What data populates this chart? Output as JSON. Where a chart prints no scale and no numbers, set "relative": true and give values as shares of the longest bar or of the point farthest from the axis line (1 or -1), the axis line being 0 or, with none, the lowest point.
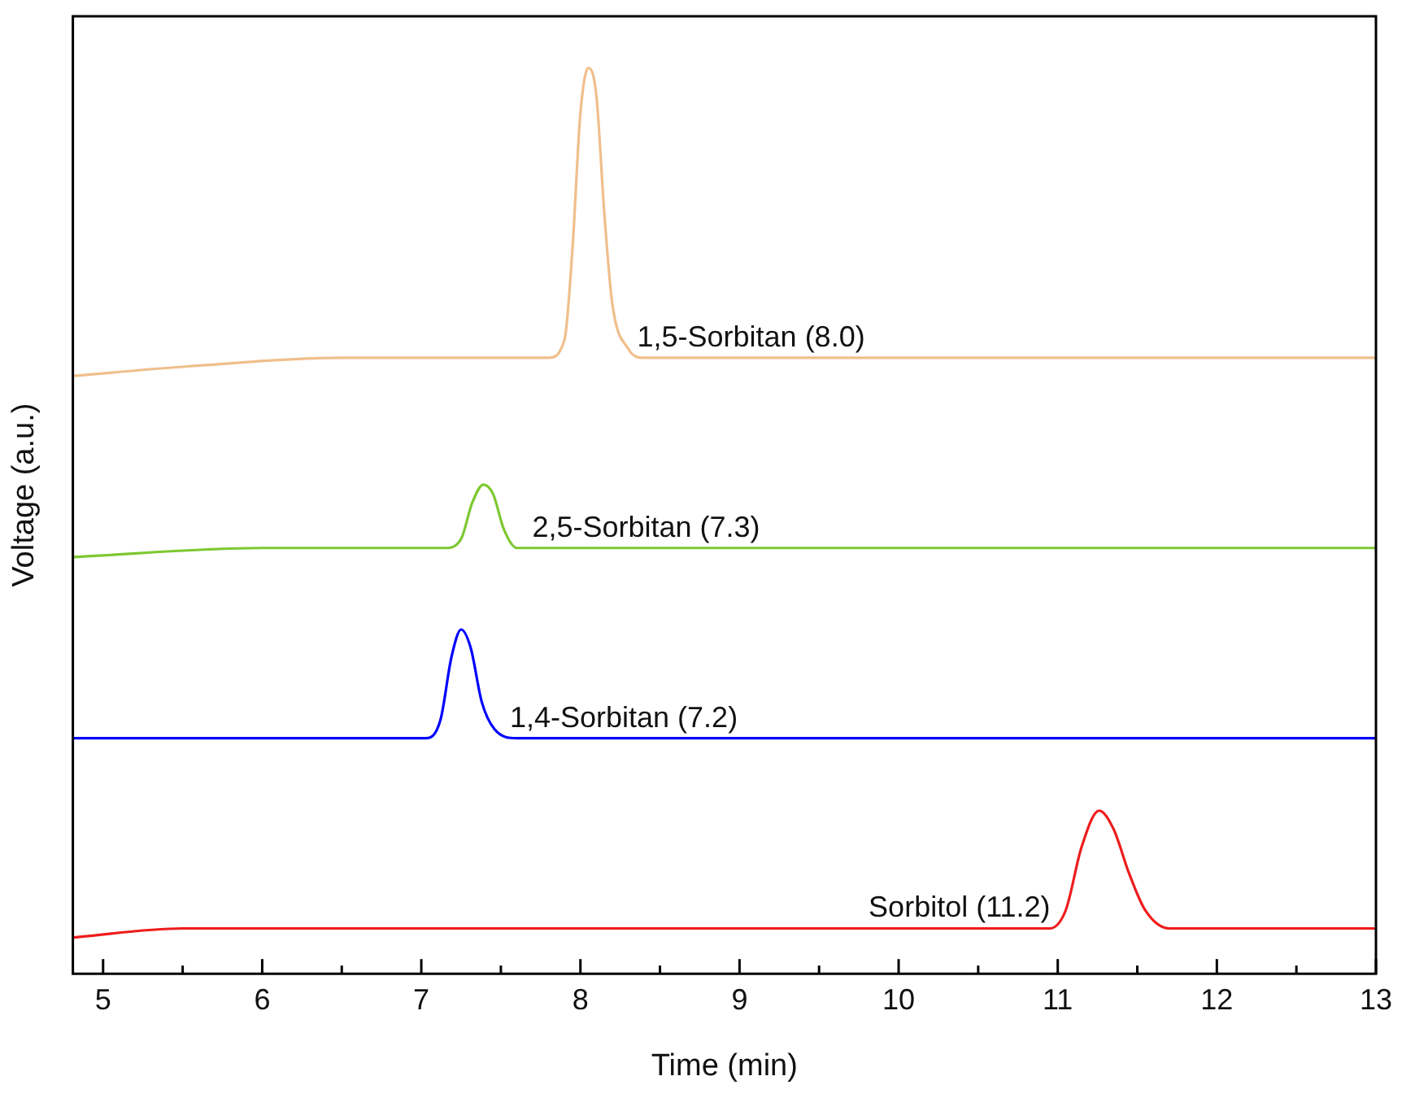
{
  "chart_data": {
    "type": "line",
    "xlabel": "Time (min)",
    "ylabel": "Voltage (a.u.)",
    "relative": true,
    "xlim": [
      4.81,
      13
    ],
    "xticks": [
      5,
      {
        "value": 5.5,
        "label": null
      },
      6,
      {
        "value": 6.5,
        "label": null
      },
      7,
      {
        "value": 7.5,
        "label": null
      },
      8,
      {
        "value": 8.5,
        "label": null
      },
      9,
      {
        "value": 9.5,
        "label": null
      },
      10,
      {
        "value": 10.5,
        "label": null
      },
      11,
      {
        "value": 11.5,
        "label": null
      },
      12,
      {
        "value": 12.5,
        "label": null
      },
      13
    ],
    "grid": false,
    "legend": false,
    "marker": "none",
    "line_style": "solid",
    "series": [
      {
        "name": "1,5-Sorbitan (8.0)",
        "color": "#efbf8c",
        "x": [
          4.81,
          5.5,
          6.5,
          7.5,
          7.8,
          7.9,
          7.95,
          8.0,
          8.05,
          8.1,
          8.15,
          8.2,
          8.3,
          8.4,
          9,
          11,
          13
        ],
        "values": [
          0.66,
          0.67,
          0.68,
          0.68,
          0.68,
          0.7,
          0.8,
          0.95,
          1.0,
          0.97,
          0.84,
          0.74,
          0.69,
          0.68,
          0.68,
          0.68,
          0.68
        ]
      },
      {
        "name": "2,5-Sorbitan (7.3)",
        "color": "#7dc832",
        "x": [
          4.81,
          6,
          7.15,
          7.25,
          7.32,
          7.39,
          7.45,
          7.52,
          7.6,
          7.75,
          9,
          13
        ],
        "values": [
          0.46,
          0.47,
          0.47,
          0.48,
          0.52,
          0.54,
          0.53,
          0.49,
          0.47,
          0.47,
          0.47,
          0.47
        ]
      },
      {
        "name": "1,4-Sorbitan (7.2)",
        "color": "#0000ff",
        "x": [
          4.81,
          6,
          7.03,
          7.12,
          7.19,
          7.25,
          7.31,
          7.38,
          7.46,
          7.6,
          9,
          13
        ],
        "values": [
          0.26,
          0.26,
          0.26,
          0.28,
          0.35,
          0.38,
          0.36,
          0.3,
          0.27,
          0.26,
          0.26,
          0.26
        ]
      },
      {
        "name": "Sorbitol (11.2)",
        "color": "#ee1c1c",
        "x": [
          4.81,
          5.5,
          7,
          8,
          10,
          10.95,
          11.05,
          11.15,
          11.26,
          11.35,
          11.45,
          11.55,
          11.7,
          13
        ],
        "values": [
          0.04,
          0.05,
          0.05,
          0.05,
          0.05,
          0.05,
          0.07,
          0.14,
          0.18,
          0.16,
          0.11,
          0.07,
          0.05,
          0.05
        ]
      }
    ]
  }
}
